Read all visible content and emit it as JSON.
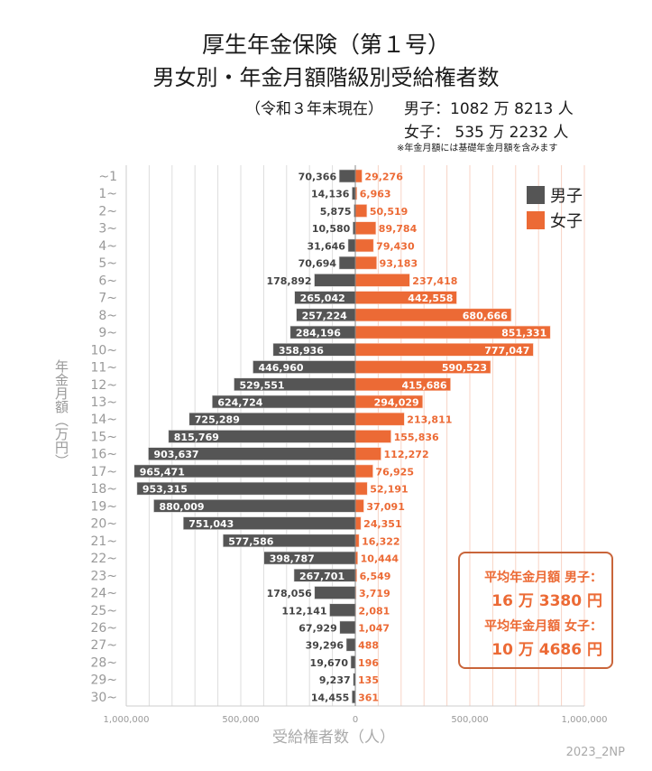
{
  "title": "厚生年金保険（第１号）",
  "subtitle": "男女別・年金月額階級別受給権者数",
  "note": "（令和３年末現在）",
  "male_total": "男子：1082 万 8213 人",
  "female_total": "女子：  535 万 2232 人",
  "footnote": "※年金月額には基礎年金月額を含みます",
  "credit": "2023_2NP",
  "average_box": {
    "male_label": "平均年金月額 男子：",
    "male_value": "16 万 3380 円",
    "female_label": "平均年金月額 女子：",
    "female_value": "10 万 4686 円"
  },
  "colors": {
    "male": "#555555",
    "female": "#ec6a35",
    "female_grid": "#f8d3c4",
    "male_grid": "#dddddd"
  },
  "chart_data": {
    "type": "bar",
    "orientation": "horizontal-butterfly",
    "ylabel": "年金月額（万円）",
    "xlabel": "受給権者数（人）",
    "categories": [
      "~1",
      "1~",
      "2~",
      "3~",
      "4~",
      "5~",
      "6~",
      "7~",
      "8~",
      "9~",
      "10~",
      "11~",
      "12~",
      "13~",
      "14~",
      "15~",
      "16~",
      "17~",
      "18~",
      "19~",
      "20~",
      "21~",
      "22~",
      "23~",
      "24~",
      "25~",
      "26~",
      "27~",
      "28~",
      "29~",
      "30~"
    ],
    "series": [
      {
        "name": "男子",
        "side": "left",
        "values": [
          70366,
          14136,
          5875,
          10580,
          31646,
          70694,
          178892,
          265042,
          257224,
          284196,
          358936,
          446960,
          529551,
          624724,
          725289,
          815769,
          903637,
          965471,
          953315,
          880009,
          751043,
          577586,
          398787,
          267701,
          178056,
          112141,
          67929,
          39296,
          19670,
          9237,
          14455
        ]
      },
      {
        "name": "女子",
        "side": "right",
        "values": [
          29276,
          6963,
          50519,
          89784,
          79430,
          93183,
          237418,
          442558,
          680666,
          851331,
          777047,
          590523,
          415686,
          294029,
          213811,
          155836,
          112272,
          76925,
          52191,
          37091,
          24351,
          16322,
          10444,
          6549,
          3719,
          2081,
          1047,
          488,
          196,
          135,
          361
        ]
      }
    ],
    "xlim": [
      -1000000,
      1000000
    ],
    "xticks": [
      "1,000,000",
      "500,000",
      "0",
      "500,000",
      "1,000,000"
    ],
    "grid": true,
    "legend": "top-right"
  }
}
